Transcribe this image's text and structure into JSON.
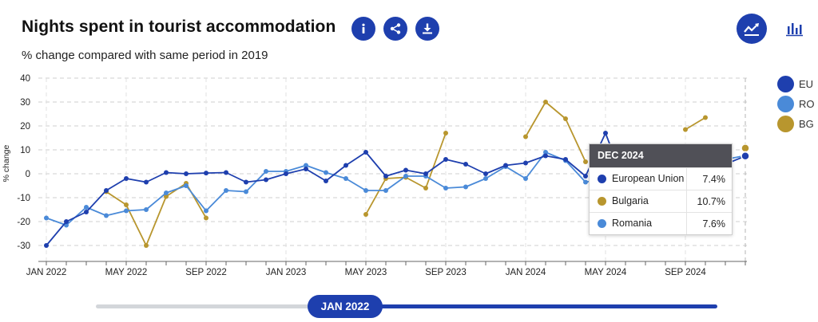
{
  "header": {
    "title": "Nights spent in tourist accommodation",
    "subtitle": "% change compared with same period in 2019"
  },
  "toolbar": {
    "info_icon": "info-icon",
    "share_icon": "share-icon",
    "download_icon": "download-icon",
    "line_view_icon": "line-chart-icon",
    "bar_view_icon": "bar-chart-icon"
  },
  "colors": {
    "eu": "#1e3fae",
    "ro": "#4a8ad8",
    "bg": "#b8962e",
    "accent": "#1e3fae",
    "tooltip_header": "#505057"
  },
  "tooltip": {
    "date": "DEC 2024",
    "rows": [
      {
        "name": "European Union",
        "value": "7.4%",
        "color": "#1e3fae"
      },
      {
        "name": "Bulgaria",
        "value": "10.7%",
        "color": "#b8962e"
      },
      {
        "name": "Romania",
        "value": "7.6%",
        "color": "#4a8ad8"
      }
    ]
  },
  "slider": {
    "label": "JAN 2022"
  },
  "chart_data": {
    "type": "line",
    "title": "Nights spent in tourist accommodation",
    "subtitle": "% change compared with same period in 2019",
    "ylabel": "% change",
    "xlabel": "",
    "ylim": [
      -30,
      40
    ],
    "yticks": [
      -30,
      -20,
      -10,
      0,
      10,
      20,
      30,
      40
    ],
    "grid": true,
    "legend_position": "right",
    "x": [
      "JAN 2022",
      "FEB 2022",
      "MAR 2022",
      "APR 2022",
      "MAY 2022",
      "JUN 2022",
      "JUL 2022",
      "AUG 2022",
      "SEP 2022",
      "OCT 2022",
      "NOV 2022",
      "DEC 2022",
      "JAN 2023",
      "FEB 2023",
      "MAR 2023",
      "APR 2023",
      "MAY 2023",
      "JUN 2023",
      "JUL 2023",
      "AUG 2023",
      "SEP 2023",
      "OCT 2023",
      "NOV 2023",
      "DEC 2023",
      "JAN 2024",
      "FEB 2024",
      "MAR 2024",
      "APR 2024",
      "MAY 2024",
      "JUN 2024",
      "JUL 2024",
      "AUG 2024",
      "SEP 2024",
      "OCT 2024",
      "NOV 2024",
      "DEC 2024"
    ],
    "xtick_labels": [
      {
        "index": 0,
        "label": "JAN 2022"
      },
      {
        "index": 4,
        "label": "MAY 2022"
      },
      {
        "index": 8,
        "label": "SEP 2022"
      },
      {
        "index": 12,
        "label": "JAN 2023"
      },
      {
        "index": 16,
        "label": "MAY 2023"
      },
      {
        "index": 20,
        "label": "SEP 2023"
      },
      {
        "index": 24,
        "label": "JAN 2024"
      },
      {
        "index": 28,
        "label": "MAY 2024"
      },
      {
        "index": 32,
        "label": "SEP 2024"
      }
    ],
    "highlight_index": 35,
    "series": [
      {
        "name": "EU",
        "color": "#1e3fae",
        "values": [
          -30,
          -20,
          -16,
          -7,
          -2,
          -3.5,
          0.5,
          0,
          0.3,
          0.5,
          -3.5,
          -2.5,
          0,
          2,
          -3,
          3.5,
          9,
          -1,
          1.5,
          0,
          6,
          4,
          0,
          3.5,
          4.5,
          7.5,
          6,
          -1,
          17,
          -5,
          -0.5,
          0,
          1,
          2,
          4,
          7.4
        ]
      },
      {
        "name": "RO",
        "color": "#4a8ad8",
        "values": [
          -18.5,
          -21.5,
          -14,
          -17.5,
          -15.5,
          -15,
          -8,
          -5,
          -15.5,
          -7,
          -7.5,
          1,
          1,
          3.5,
          0.5,
          -2,
          -7,
          -7,
          -1,
          -1,
          -6,
          -5.5,
          -2,
          3,
          -2,
          9,
          5.5,
          -3.5,
          -2,
          -3.5,
          0.5,
          1.5,
          2.5,
          3.5,
          6,
          7.6
        ]
      },
      {
        "name": "BG",
        "color": "#b8962e",
        "values": [
          null,
          null,
          null,
          -7.5,
          -13,
          -30,
          -9.5,
          -4,
          -18.5,
          null,
          null,
          null,
          null,
          null,
          null,
          null,
          -17,
          -2,
          -1.5,
          -6,
          17,
          null,
          null,
          null,
          15.5,
          30,
          23,
          5,
          null,
          null,
          null,
          null,
          18.5,
          23.5,
          null,
          10.7
        ]
      }
    ]
  }
}
